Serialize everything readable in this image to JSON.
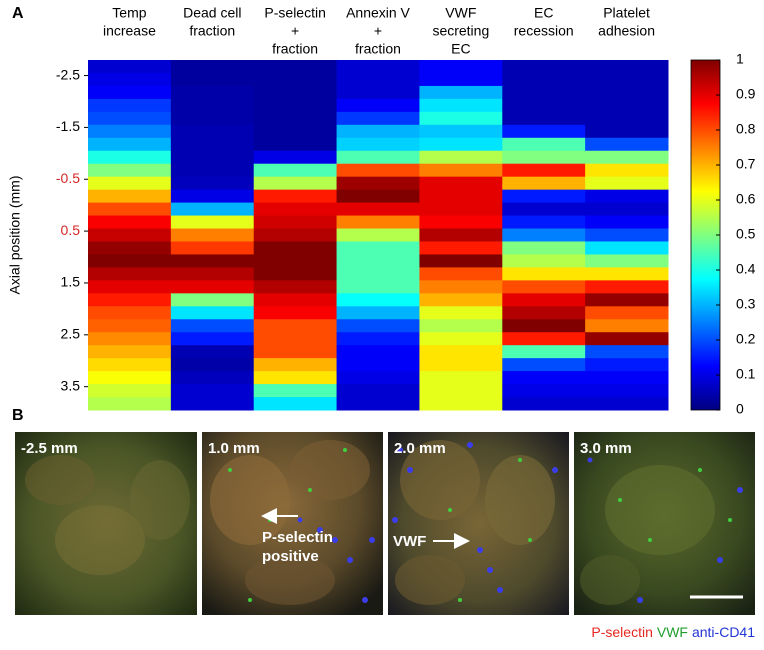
{
  "chart_data": {
    "type": "heatmap",
    "panel_label": "A",
    "ylabel": "Axial position (mm)",
    "columns": [
      [
        "Temp",
        "increase"
      ],
      [
        "Dead cell",
        "fraction"
      ],
      [
        "P-selectin",
        "+",
        "fraction"
      ],
      [
        "Annexin V",
        "+",
        "fraction"
      ],
      [
        "VWF",
        "secreting",
        "EC"
      ],
      [
        "EC",
        "recession"
      ],
      [
        "Platelet",
        "adhesion"
      ]
    ],
    "y": [
      -2.675,
      -2.425,
      -2.175,
      -1.925,
      -1.675,
      -1.425,
      -1.175,
      -0.925,
      -0.675,
      -0.425,
      -0.175,
      0.075,
      0.325,
      0.575,
      0.825,
      1.075,
      1.325,
      1.575,
      1.825,
      2.075,
      2.325,
      2.575,
      2.825,
      3.075,
      3.325,
      3.575,
      3.825
    ],
    "z": [
      [
        0.08,
        0.1,
        0.12,
        0.18,
        0.2,
        0.25,
        0.3,
        0.4,
        0.5,
        0.6,
        0.7,
        0.8,
        0.88,
        0.93,
        0.98,
        1.0,
        0.95,
        0.9,
        0.85,
        0.8,
        0.78,
        0.74,
        0.7,
        0.66,
        0.62,
        0.58,
        0.55
      ],
      [
        0.03,
        0.03,
        0.04,
        0.04,
        0.04,
        0.05,
        0.05,
        0.05,
        0.05,
        0.06,
        0.1,
        0.3,
        0.6,
        0.75,
        0.82,
        1.0,
        0.95,
        0.9,
        0.5,
        0.35,
        0.2,
        0.15,
        0.05,
        0.04,
        0.06,
        0.08,
        0.08
      ],
      [
        0.03,
        0.03,
        0.03,
        0.03,
        0.03,
        0.03,
        0.03,
        0.1,
        0.45,
        0.55,
        0.85,
        0.9,
        0.92,
        0.95,
        1.0,
        1.0,
        1.0,
        0.95,
        0.9,
        0.88,
        0.8,
        0.8,
        0.8,
        0.7,
        0.65,
        0.45,
        0.35
      ],
      [
        0.08,
        0.08,
        0.08,
        0.12,
        0.18,
        0.3,
        0.33,
        0.45,
        0.8,
        0.97,
        1.0,
        0.9,
        0.75,
        0.55,
        0.45,
        0.45,
        0.45,
        0.45,
        0.38,
        0.3,
        0.2,
        0.15,
        0.12,
        0.12,
        0.1,
        0.08,
        0.08
      ],
      [
        0.12,
        0.12,
        0.3,
        0.35,
        0.4,
        0.32,
        0.35,
        0.55,
        0.75,
        0.9,
        0.9,
        0.9,
        0.88,
        0.95,
        0.85,
        1.0,
        0.8,
        0.75,
        0.7,
        0.6,
        0.55,
        0.6,
        0.65,
        0.65,
        0.6,
        0.6,
        0.6
      ],
      [
        0.05,
        0.05,
        0.05,
        0.05,
        0.05,
        0.15,
        0.45,
        0.5,
        0.85,
        0.7,
        0.15,
        0.08,
        0.15,
        0.25,
        0.5,
        0.55,
        0.65,
        0.8,
        0.9,
        0.95,
        1.0,
        0.85,
        0.45,
        0.2,
        0.12,
        0.1,
        0.08
      ],
      [
        0.05,
        0.05,
        0.05,
        0.05,
        0.05,
        0.05,
        0.2,
        0.5,
        0.65,
        0.6,
        0.1,
        0.08,
        0.12,
        0.2,
        0.35,
        0.5,
        0.65,
        0.85,
        0.98,
        0.8,
        0.75,
        0.98,
        0.2,
        0.15,
        0.12,
        0.1,
        0.08
      ]
    ],
    "ylim": [
      -2.8,
      3.95
    ],
    "yticks": [
      -2.5,
      -1.5,
      -0.5,
      0.5,
      1.5,
      2.5,
      3.5
    ],
    "ytick_colors": [
      "#000000",
      "#000000",
      "#d62728",
      "#d62728",
      "#000000",
      "#000000",
      "#000000"
    ],
    "colormap": "jet",
    "zlim": [
      0,
      1
    ],
    "zticks": [
      0,
      0.1,
      0.2,
      0.3,
      0.4,
      0.5,
      0.6,
      0.7,
      0.8,
      0.9,
      1
    ]
  },
  "panel_b": {
    "panel_label": "B",
    "images": [
      "-2.5 mm",
      "1.0 mm",
      "2.0 mm",
      "3.0 mm"
    ],
    "annotations": [
      [
        "P-selectin",
        "positive"
      ],
      [
        "VWF"
      ]
    ],
    "legend": [
      {
        "text": "P-selectin",
        "color": "#e8271f"
      },
      {
        "text": "VWF",
        "color": "#1f9e2c"
      },
      {
        "text": "anti-CD41",
        "color": "#2236d6"
      }
    ]
  }
}
